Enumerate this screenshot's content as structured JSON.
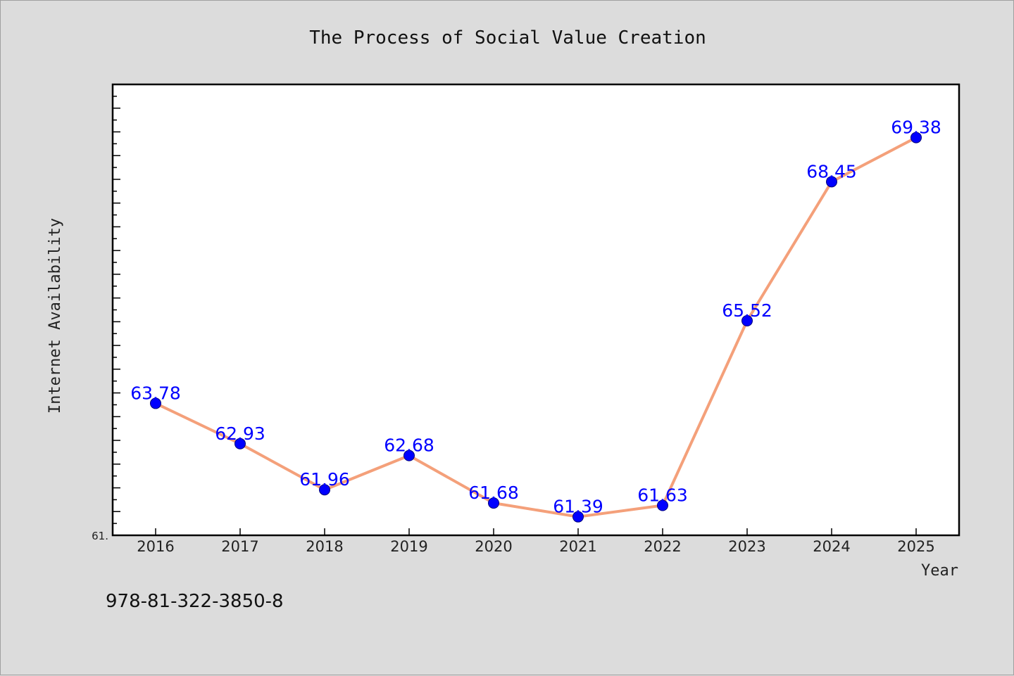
{
  "chart_data": {
    "type": "line",
    "title": "The Process of Social Value Creation",
    "xlabel": "Year",
    "ylabel": "Internet Availability",
    "categories": [
      "2016",
      "2017",
      "2018",
      "2019",
      "2020",
      "2021",
      "2022",
      "2023",
      "2024",
      "2025"
    ],
    "series": [
      {
        "values": [
          63.78,
          62.93,
          61.96,
          62.68,
          61.68,
          61.39,
          61.63,
          65.52,
          68.45,
          69.38
        ],
        "data_labels": [
          "63.78",
          "62.93",
          "61.96",
          "62.68",
          "61.68",
          "61.39",
          "61.63",
          "65.52",
          "68.45",
          "69.38"
        ]
      }
    ],
    "ylim": [
      61.0,
      70.5
    ],
    "y_min_tick_label": "61.",
    "grid": false,
    "colors": {
      "line": "#f4a07a",
      "marker": "#0000ff",
      "data_label": "#0000ff",
      "plot_bg": "#ffffff",
      "page_bg": "#dcdcdc"
    }
  },
  "footer": {
    "code": "978-81-322-3850-8"
  }
}
